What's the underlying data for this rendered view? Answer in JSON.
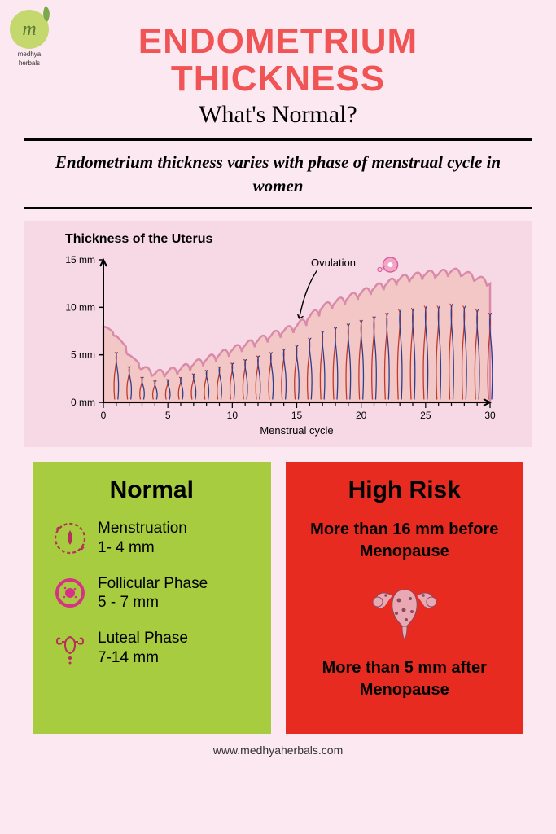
{
  "logo": {
    "letter": "m",
    "brand_line1": "medhya",
    "brand_line2": "herbals"
  },
  "title_line1": "ENDOMETRIUM",
  "title_line2": "THICKNESS",
  "subtitle": "What's Normal?",
  "intro": "Endometrium thickness varies with phase of menstrual cycle in women",
  "chart": {
    "title": "Thickness of the Uterus",
    "x_label": "Menstrual cycle",
    "x_ticks": [
      0,
      5,
      10,
      15,
      20,
      25,
      30
    ],
    "y_ticks_labels": [
      "0 mm",
      "5 mm",
      "10 mm",
      "15 mm"
    ],
    "y_ticks_vals": [
      0,
      5,
      10,
      15
    ],
    "ovulation_label": "Ovulation",
    "ovulation_x": 15,
    "upper_profile": [
      [
        0,
        8
      ],
      [
        1,
        7
      ],
      [
        2,
        5
      ],
      [
        3,
        3.5
      ],
      [
        4,
        3
      ],
      [
        5,
        3.2
      ],
      [
        6,
        3.5
      ],
      [
        7,
        4
      ],
      [
        8,
        4.5
      ],
      [
        9,
        5
      ],
      [
        10,
        5.5
      ],
      [
        11,
        6
      ],
      [
        12,
        6.5
      ],
      [
        13,
        7
      ],
      [
        14,
        7.5
      ],
      [
        15,
        8
      ],
      [
        16,
        9
      ],
      [
        17,
        10
      ],
      [
        18,
        10.5
      ],
      [
        19,
        11
      ],
      [
        20,
        11.5
      ],
      [
        21,
        12
      ],
      [
        22,
        12.5
      ],
      [
        23,
        13
      ],
      [
        24,
        13.2
      ],
      [
        25,
        13.5
      ],
      [
        26,
        13.5
      ],
      [
        27,
        13.8
      ],
      [
        28,
        13.5
      ],
      [
        29,
        13
      ],
      [
        30,
        12.5
      ]
    ],
    "colors": {
      "tissue_fill": "#f4c7c7",
      "tissue_outline": "#d88aa8",
      "vessel_red": "#c0392b",
      "vessel_blue": "#2c3e8f",
      "egg_pink": "#f2a6c7",
      "egg_outline": "#e05a9b"
    }
  },
  "normal": {
    "title": "Normal",
    "phases": [
      {
        "label": "Menstruation",
        "range": "1- 4 mm",
        "icon": "menstruation"
      },
      {
        "label": "Follicular Phase",
        "range": "5 - 7 mm",
        "icon": "follicular"
      },
      {
        "label": "Luteal Phase",
        "range": "7-14 mm",
        "icon": "luteal"
      }
    ],
    "bg": "#a8cc3f",
    "icon_accent": "#b5305a"
  },
  "risk": {
    "title": "High Risk",
    "text1": "More than 16 mm before Menopause",
    "text2": "More than 5 mm after Menopause",
    "bg": "#e82b20",
    "uterus_color": "#e8a9b5",
    "uterus_dark": "#8b4a5a"
  },
  "footer": "www.medhyaherbals.com"
}
